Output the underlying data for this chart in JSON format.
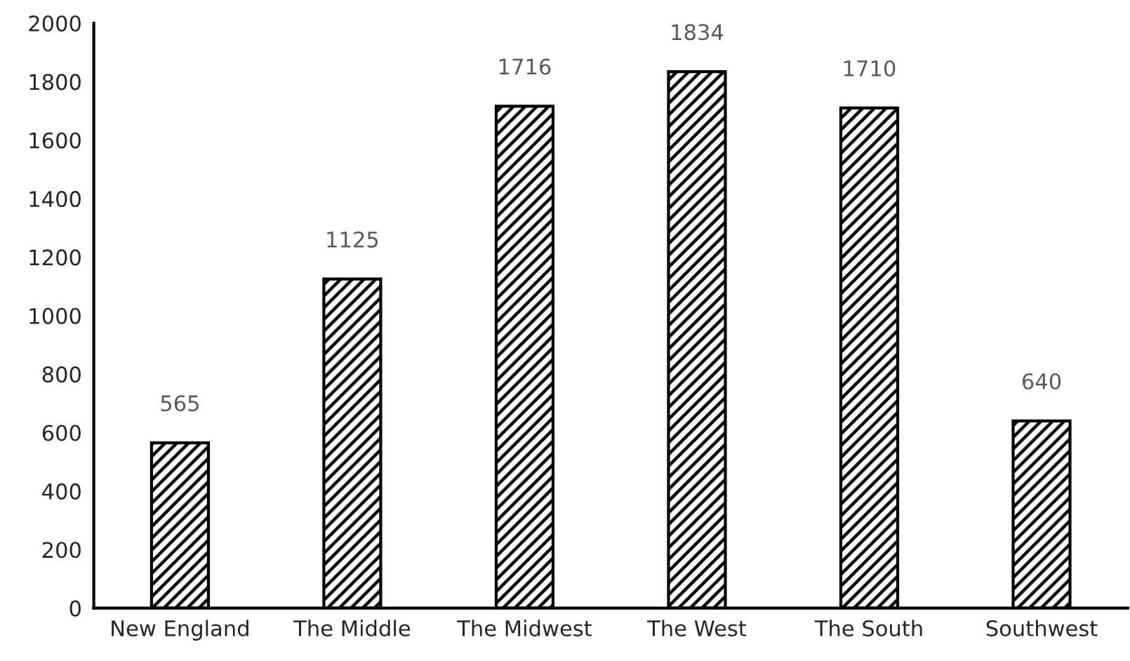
{
  "chart_data": {
    "type": "bar",
    "categories": [
      "New England",
      "The Middle",
      "The Midwest",
      "The West",
      "The South",
      "Southwest"
    ],
    "series": [
      {
        "color": "#000000",
        "values": [
          565,
          1125,
          1716,
          1834,
          1710,
          640
        ]
      }
    ],
    "data_labels": true,
    "ylim": [
      0,
      2000
    ],
    "yticks": [
      0,
      200,
      400,
      600,
      800,
      1000,
      1200,
      1400,
      1600,
      1800,
      2000
    ],
    "grid": false,
    "legend": false
  }
}
